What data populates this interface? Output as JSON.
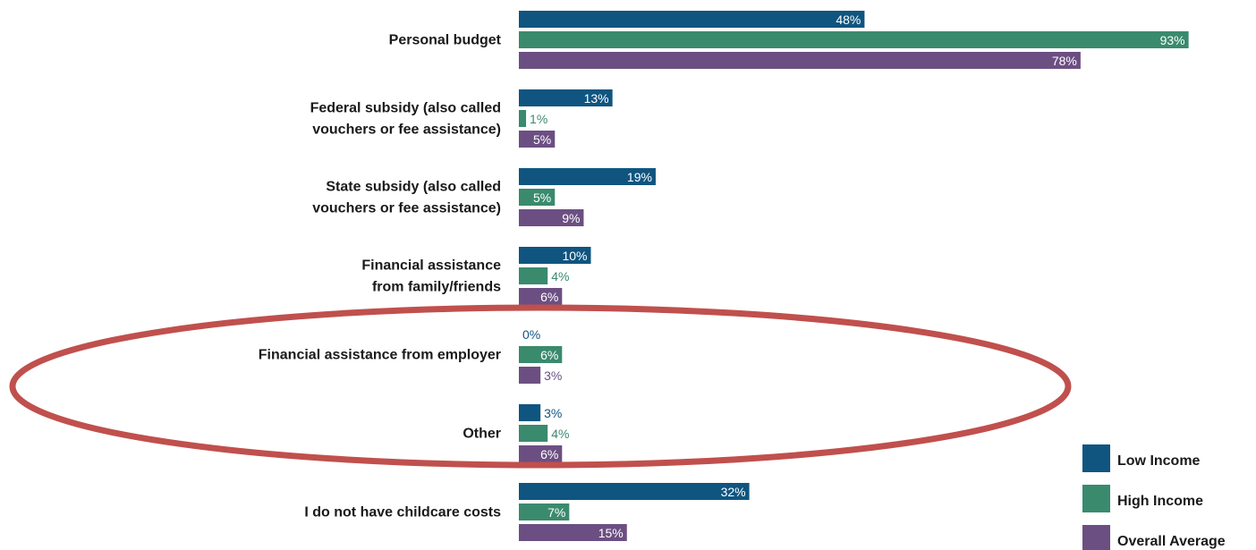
{
  "chart_data": {
    "type": "bar",
    "orientation": "horizontal",
    "categories": [
      "Personal budget",
      "Federal subsidy (also called vouchers or fee assistance)",
      "State subsidy (also called vouchers or fee assistance)",
      "Financial assistance from family/friends",
      "Financial assistance from employer",
      "Other",
      "I do not have childcare costs"
    ],
    "category_lines": [
      [
        "Personal budget"
      ],
      [
        "Federal subsidy (also called",
        "vouchers or fee assistance)"
      ],
      [
        "State subsidy (also called",
        "vouchers or fee assistance)"
      ],
      [
        "Financial assistance",
        "from family/friends"
      ],
      [
        "Financial assistance from employer"
      ],
      [
        "Other"
      ],
      [
        "I do not have childcare costs"
      ]
    ],
    "series": [
      {
        "name": "Low Income",
        "color": "#0f5580",
        "values": [
          48,
          13,
          19,
          10,
          0,
          3,
          32
        ]
      },
      {
        "name": "High Income",
        "color": "#3a8a6e",
        "values": [
          93,
          1,
          5,
          4,
          6,
          4,
          7
        ]
      },
      {
        "name": "Overall Average",
        "color": "#6c4f82",
        "values": [
          78,
          5,
          9,
          6,
          3,
          6,
          15
        ]
      }
    ],
    "value_suffix": "%",
    "xlim": [
      0,
      100
    ],
    "grid": false,
    "legend_position": "bottom-right",
    "annotation": {
      "shape": "ellipse",
      "color": "#c0504d",
      "highlights": [
        "Financial assistance from employer",
        "Other"
      ]
    }
  }
}
